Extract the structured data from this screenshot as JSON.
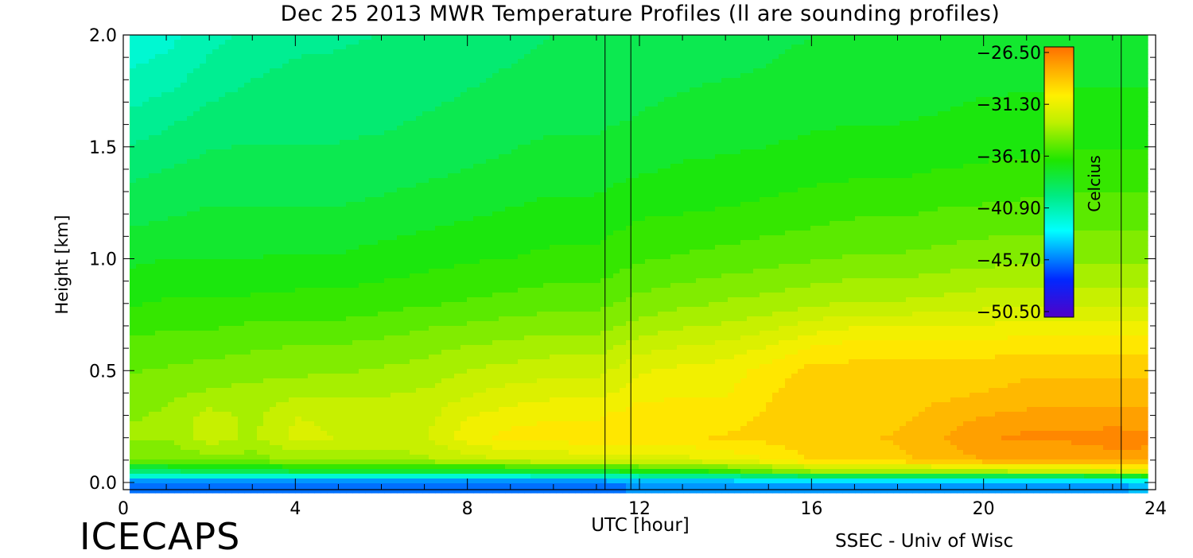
{
  "chart_data": {
    "type": "heatmap",
    "title": "Dec 25 2013 MWR Temperature Profiles (ll are sounding profiles)",
    "xlabel": "UTC [hour]",
    "ylabel": "Height [km]",
    "xlim": [
      0,
      24
    ],
    "ylim": [
      0.0,
      2.0
    ],
    "x_ticks": [
      "0",
      "4",
      "8",
      "12",
      "16",
      "20",
      "24"
    ],
    "x_tick_values": [
      0,
      4,
      8,
      12,
      16,
      20,
      24
    ],
    "y_ticks": [
      "0.0",
      "0.5",
      "1.0",
      "1.5",
      "2.0"
    ],
    "y_tick_values": [
      0.0,
      0.5,
      1.0,
      1.5,
      2.0
    ],
    "colorbar": {
      "label": "Celcius",
      "ticks": [
        "−26.50",
        "−31.30",
        "−36.10",
        "−40.90",
        "−45.70",
        "−50.50"
      ],
      "min": -50.5,
      "max": -26.5
    },
    "sounding_profiles_utc": [
      11.2,
      11.8,
      23.2
    ],
    "x": [
      0,
      1,
      2,
      3,
      4,
      5,
      6,
      7,
      8,
      9,
      10,
      11,
      12,
      13,
      14,
      15,
      16,
      17,
      18,
      19,
      20,
      21,
      22,
      23,
      23.8
    ],
    "y": [
      0.0,
      0.05,
      0.1,
      0.2,
      0.3,
      0.4,
      0.5,
      0.6,
      0.7,
      0.8,
      1.0,
      1.2,
      1.4,
      1.6,
      1.8,
      2.0
    ],
    "z": [
      [
        -46,
        -46,
        -46,
        -46,
        -46,
        -46,
        -46,
        -46,
        -46,
        -46,
        -46,
        -46,
        -45,
        -45,
        -45,
        -45,
        -45,
        -45,
        -45,
        -45,
        -45,
        -45,
        -45,
        -45,
        -44
      ],
      [
        -39,
        -39,
        -38.5,
        -38.5,
        -38,
        -38,
        -38,
        -38,
        -38,
        -38,
        -37.5,
        -37.5,
        -37,
        -37,
        -36,
        -35,
        -34,
        -34,
        -34,
        -33.5,
        -33.5,
        -33,
        -33,
        -32.5,
        -32
      ],
      [
        -35,
        -35,
        -34.5,
        -34.5,
        -34,
        -34,
        -34,
        -33.5,
        -33,
        -32.5,
        -32.5,
        -32,
        -32,
        -32,
        -31.5,
        -31,
        -30,
        -29.5,
        -29.5,
        -29,
        -28.5,
        -28.5,
        -28.5,
        -28,
        -28
      ],
      [
        -34,
        -34,
        -32.8,
        -33.5,
        -32.3,
        -32.5,
        -32.6,
        -32.6,
        -31.2,
        -30.6,
        -30.5,
        -30.5,
        -30.5,
        -30.2,
        -30.0,
        -29.8,
        -29.5,
        -29.5,
        -29.2,
        -28.6,
        -27.8,
        -27.5,
        -27.5,
        -27.3,
        -27.5
      ],
      [
        -34.2,
        -34.0,
        -33.0,
        -33.5,
        -32.5,
        -32.7,
        -32.8,
        -32.8,
        -31.8,
        -31.3,
        -31.0,
        -31.0,
        -30.5,
        -30.5,
        -30.5,
        -30.0,
        -29.6,
        -29.6,
        -29.5,
        -29.0,
        -28.5,
        -28.3,
        -28.3,
        -28.2,
        -28.2
      ],
      [
        -34.5,
        -34.3,
        -34.0,
        -33.8,
        -33.6,
        -33.5,
        -33.4,
        -33.2,
        -32.6,
        -32.2,
        -32.0,
        -32.0,
        -31.2,
        -31.0,
        -31.0,
        -30.2,
        -29.6,
        -29.6,
        -29.6,
        -29.5,
        -29.3,
        -29.0,
        -29.0,
        -29.0,
        -29.0
      ],
      [
        -35.0,
        -34.8,
        -34.6,
        -34.4,
        -34.3,
        -34.2,
        -34.0,
        -33.8,
        -33.3,
        -33.0,
        -32.8,
        -32.8,
        -31.8,
        -31.5,
        -31.3,
        -30.6,
        -29.8,
        -29.8,
        -29.8,
        -29.8,
        -29.7,
        -29.5,
        -29.5,
        -29.5,
        -29.5
      ],
      [
        -35.5,
        -35.3,
        -35.2,
        -35.0,
        -34.8,
        -34.8,
        -34.6,
        -34.4,
        -34.0,
        -33.8,
        -33.6,
        -33.6,
        -32.8,
        -32.4,
        -32.2,
        -31.6,
        -30.8,
        -30.5,
        -30.5,
        -30.5,
        -30.4,
        -30.3,
        -30.3,
        -30.3,
        -30.3
      ],
      [
        -36.0,
        -35.8,
        -35.8,
        -35.6,
        -35.5,
        -35.5,
        -35.3,
        -35.0,
        -34.8,
        -34.6,
        -34.4,
        -34.4,
        -33.8,
        -33.4,
        -33.2,
        -32.8,
        -32.2,
        -31.8,
        -31.8,
        -31.8,
        -31.6,
        -31.5,
        -31.5,
        -31.5,
        -31.5
      ],
      [
        -36.6,
        -36.4,
        -36.4,
        -36.3,
        -36.2,
        -36.2,
        -36.0,
        -35.8,
        -35.6,
        -35.4,
        -35.2,
        -35.2,
        -34.6,
        -34.3,
        -34.0,
        -33.8,
        -33.5,
        -33.2,
        -33.2,
        -33.0,
        -32.8,
        -32.7,
        -32.7,
        -32.7,
        -32.7
      ],
      [
        -37.5,
        -37.3,
        -37.3,
        -37.3,
        -37.2,
        -37.2,
        -37.0,
        -36.8,
        -36.6,
        -36.5,
        -36.3,
        -36.3,
        -35.8,
        -35.6,
        -35.4,
        -35.2,
        -35.0,
        -34.8,
        -34.8,
        -34.6,
        -34.4,
        -34.3,
        -34.3,
        -34.3,
        -34.3
      ],
      [
        -38.4,
        -38.2,
        -38.0,
        -38.0,
        -38.0,
        -38.0,
        -37.8,
        -37.6,
        -37.4,
        -37.2,
        -37.0,
        -37.0,
        -36.6,
        -36.5,
        -36.4,
        -36.2,
        -36.0,
        -35.8,
        -35.8,
        -35.6,
        -35.5,
        -35.4,
        -35.3,
        -35.3,
        -35.3
      ],
      [
        -39.2,
        -38.9,
        -38.6,
        -38.6,
        -38.6,
        -38.6,
        -38.5,
        -38.3,
        -38.1,
        -37.9,
        -37.7,
        -37.7,
        -37.4,
        -37.2,
        -37.1,
        -37.0,
        -36.8,
        -36.7,
        -36.7,
        -36.5,
        -36.4,
        -36.3,
        -36.2,
        -36.2,
        -36.2
      ],
      [
        -40.2,
        -39.8,
        -39.3,
        -39.1,
        -39.1,
        -39.1,
        -39.0,
        -38.8,
        -38.6,
        -38.4,
        -38.2,
        -38.2,
        -38.0,
        -37.8,
        -37.7,
        -37.6,
        -37.4,
        -37.3,
        -37.3,
        -37.2,
        -37.0,
        -37.0,
        -36.9,
        -36.9,
        -36.9
      ],
      [
        -41.2,
        -40.8,
        -40.1,
        -39.7,
        -39.5,
        -39.5,
        -39.4,
        -39.2,
        -39.0,
        -38.8,
        -38.6,
        -38.6,
        -38.4,
        -38.2,
        -38.1,
        -38.0,
        -37.8,
        -37.7,
        -37.7,
        -37.6,
        -37.5,
        -37.4,
        -37.4,
        -37.4,
        -37.4
      ],
      [
        -42.0,
        -41.6,
        -40.8,
        -40.2,
        -39.9,
        -39.8,
        -39.7,
        -39.5,
        -39.3,
        -39.1,
        -38.9,
        -38.9,
        -38.7,
        -38.5,
        -38.4,
        -38.3,
        -38.1,
        -38.0,
        -38.0,
        -37.9,
        -37.8,
        -37.7,
        -37.7,
        -37.7,
        -37.7
      ]
    ]
  },
  "footer": {
    "left": "ICECAPS",
    "right": "SSEC - Univ of Wisc"
  },
  "colors": {
    "background": "#ffffff",
    "axis": "#000000"
  }
}
